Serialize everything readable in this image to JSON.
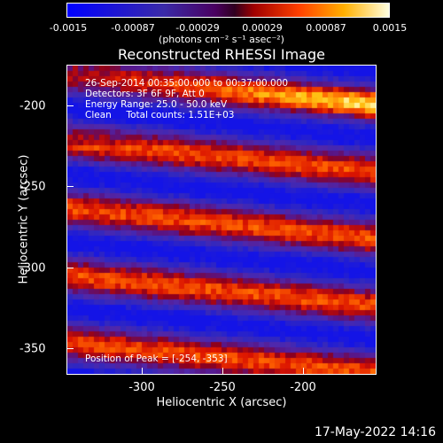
{
  "colorbar": {
    "ticks": [
      "-0.0015",
      "-0.00087",
      "-0.00029",
      "0.00029",
      "0.00087",
      "0.0015"
    ],
    "units": "(photons cm⁻² s⁻¹ asec⁻²)"
  },
  "title": "Reconstructed RHESSI Image",
  "info": {
    "time": "26-Sep-2014 00:35:00.000 to 00:37:00.000",
    "detectors": "Detectors: 3F 6F 9F, Att 0",
    "energy": "Energy Range: 25.0 - 50.0 keV",
    "clean": "Clean     Total counts: 1.51E+03",
    "peak": "Position of Peak = [-254, -353]"
  },
  "axes": {
    "xlabel": "Heliocentric X (arcsec)",
    "ylabel": "Heliocentric Y (arcsec)",
    "xticks": [
      "-300",
      "-250",
      "-200"
    ],
    "yticks": [
      "-200",
      "-250",
      "-300",
      "-350"
    ]
  },
  "timestamp": "17-May-2022 14:16"
}
